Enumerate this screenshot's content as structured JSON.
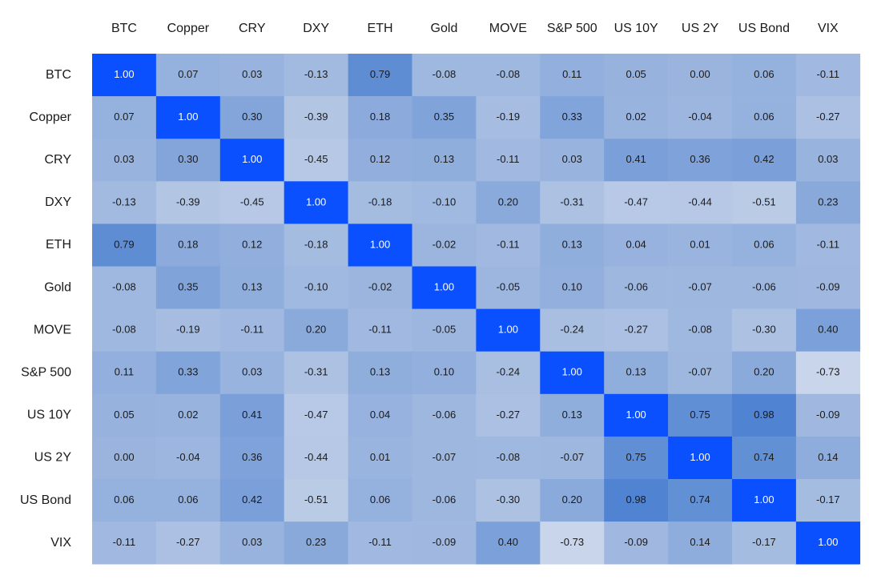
{
  "chart_data": {
    "type": "heatmap",
    "title": "",
    "xlabel": "",
    "ylabel": "",
    "labels": [
      "BTC",
      "Copper",
      "CRY",
      "DXY",
      "ETH",
      "Gold",
      "MOVE",
      "S&P 500",
      "US 10Y",
      "US 2Y",
      "US Bond",
      "VIX"
    ],
    "value_range": [
      -1,
      1
    ],
    "colors": {
      "low": "#c9d6ea",
      "high": "#0a50ff"
    },
    "matrix": [
      [
        1.0,
        0.07,
        0.03,
        -0.13,
        0.79,
        -0.08,
        -0.08,
        0.11,
        0.05,
        0.0,
        0.06,
        -0.11
      ],
      [
        0.07,
        1.0,
        0.3,
        -0.39,
        0.18,
        0.35,
        -0.19,
        0.33,
        0.02,
        -0.04,
        0.06,
        -0.27
      ],
      [
        0.03,
        0.3,
        1.0,
        -0.45,
        0.12,
        0.13,
        -0.11,
        0.03,
        0.41,
        0.36,
        0.42,
        0.03
      ],
      [
        -0.13,
        -0.39,
        -0.45,
        1.0,
        -0.18,
        -0.1,
        0.2,
        -0.31,
        -0.47,
        -0.44,
        -0.51,
        0.23
      ],
      [
        0.79,
        0.18,
        0.12,
        -0.18,
        1.0,
        -0.02,
        -0.11,
        0.13,
        0.04,
        0.01,
        0.06,
        -0.11
      ],
      [
        -0.08,
        0.35,
        0.13,
        -0.1,
        -0.02,
        1.0,
        -0.05,
        0.1,
        -0.06,
        -0.07,
        -0.06,
        -0.09
      ],
      [
        -0.08,
        -0.19,
        -0.11,
        0.2,
        -0.11,
        -0.05,
        1.0,
        -0.24,
        -0.27,
        -0.08,
        -0.3,
        0.4
      ],
      [
        0.11,
        0.33,
        0.03,
        -0.31,
        0.13,
        0.1,
        -0.24,
        1.0,
        0.13,
        -0.07,
        0.2,
        -0.73
      ],
      [
        0.05,
        0.02,
        0.41,
        -0.47,
        0.04,
        -0.06,
        -0.27,
        0.13,
        1.0,
        0.75,
        0.98,
        -0.09
      ],
      [
        0.0,
        -0.04,
        0.36,
        -0.44,
        0.01,
        -0.07,
        -0.08,
        -0.07,
        0.75,
        1.0,
        0.74,
        0.14
      ],
      [
        0.06,
        0.06,
        0.42,
        -0.51,
        0.06,
        -0.06,
        -0.3,
        0.2,
        0.98,
        0.74,
        1.0,
        -0.17
      ],
      [
        -0.11,
        -0.27,
        0.03,
        0.23,
        -0.11,
        -0.09,
        0.4,
        -0.73,
        -0.09,
        0.14,
        -0.17,
        1.0
      ]
    ]
  }
}
